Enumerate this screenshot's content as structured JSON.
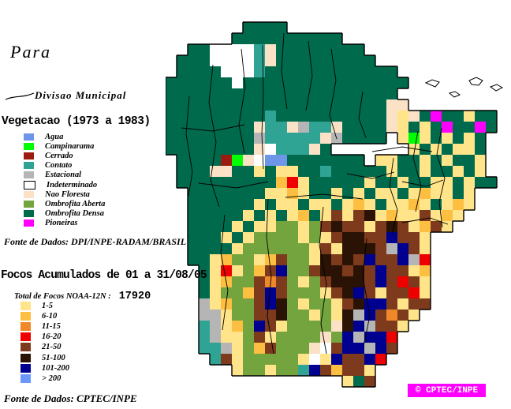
{
  "title": "Para",
  "divisao": {
    "label": "Divisao Municipal"
  },
  "vegetation": {
    "title": "Vegetacao (1973 a 1983)",
    "source": "Fonte de Dados: DPI/INPE-RADAM/BRASIL",
    "items": [
      {
        "label": "Agua",
        "color": "#6E96E8",
        "outline": false
      },
      {
        "label": "Campinarama",
        "color": "#00FF00",
        "outline": false
      },
      {
        "label": "Cerrado",
        "color": "#9B1B10",
        "outline": false
      },
      {
        "label": "Contato",
        "color": "#2FA394",
        "outline": false
      },
      {
        "label": "Estacional",
        "color": "#B5B5B5",
        "outline": false
      },
      {
        "label": "Indeterminado",
        "color": "#FFFFFF",
        "outline": true
      },
      {
        "label": "Nao Floresta",
        "color": "#FBE2C6",
        "outline": false
      },
      {
        "label": "Ombrofita Aberta",
        "color": "#74A43D",
        "outline": false
      },
      {
        "label": "Ombrofita Densa",
        "color": "#006B4C",
        "outline": false
      },
      {
        "label": "Pioneiras",
        "color": "#FF00FF",
        "outline": false
      }
    ]
  },
  "focos": {
    "title": "Focos Acumulados de 01 a 31/08/05",
    "total_label": "Total de Focos NOAA-12N :",
    "total_value": "17920",
    "source": "Fonte de Dados: CPTEC/INPE",
    "items": [
      {
        "label": "1-5",
        "color": "#FFE48A"
      },
      {
        "label": "6-10",
        "color": "#FDBF42"
      },
      {
        "label": "11-15",
        "color": "#EF8829"
      },
      {
        "label": "16-20",
        "color": "#EE0000"
      },
      {
        "label": "21-50",
        "color": "#7D3A1C"
      },
      {
        "label": "51-100",
        "color": "#2A1304"
      },
      {
        "label": "101-200",
        "color": "#000090"
      },
      {
        "label": "> 200",
        "color": "#6B97FA"
      }
    ]
  },
  "badge": {
    "text": "© CPTEC/INPE",
    "bg": "#FF00FF"
  },
  "map": {
    "cell_size": 14,
    "palette": {
      "D": "#006B4C",
      "A": "#74A43D",
      "C": "#2FA394",
      "E": "#B5B5B5",
      "N": "#FBE2C6",
      "W": "#FFFFFF",
      "G": "#00FF00",
      "Q": "#6E96E8",
      "P": "#FF00FF",
      "R": "#9B1B10",
      "y": "#FFE48A",
      "o": "#FDBF42",
      "x": "#EF8829",
      "r": "#EE0000",
      "b": "#7D3A1C",
      "k": "#2A1304",
      "n": "#000090",
      "L": "#6B97FA"
    },
    "rows": [
      "...............................",
      "...............................",
      ".......DDDD....................",
      "......DDDDDDDDDD...............",
      "..DDWWWWCNDDDDDDDD.............",
      ".DDDWWWWCNDDDDDDDDD............",
      ".DDDDWWWCDDDDDDDDDDDD..........",
      "DDDDDDWDDDDDDDDDDDDDDD.........",
      "DDDDDDDDDDDDDDDDDDDDD..........",
      "DDDDDDDDDDDDDDDDDDDDNN.........",
      "DDDDDDDDDCDDDDDDDDDDNyNDPDDyDD.",
      "DDDDDDDDNCCNECCNDDDDNyDyDPDDPD.",
      "DDDDDDDDECCCCCNEDDDD.yGyDyDyD..",
      "DDDDDDDDNWCCCND.......yDyDyyD..",
      ".DDDDRGNWQQDDDDDDD.yyDDyDyDDy..",
      ".DDDNNDDyDyyDDCDDDDDyDDyDDyDy..",
      ".DDDDDDDDDoryDDDDDyDDyDDyyDyDD.",
      "..DDDDDDDyyoyDDyDyDyyDyoyyDy...",
      "..DDDDDDyDyyDyyDyoyDyyoyDyoy...",
      "..DDDDDyDyDyoDybybkyoyybyoy....",
      "..DDDDyDyyAAyAbkbbybkbyoby.....",
      "..DDDyDyAAAAyAybkkbbnbby.......",
      "..DDDDyAAAAAAybykkkbEnby.......",
      "..DDyoAAyobAAykbkbnbbnEr.......",
      "...DyryAobnAAbkkbkbnbbyo.......",
      "...DyoAAbxbAyAbkkkbnbrby.......",
      "...DyAAobnbAAAybknbybbry.......",
      "...EyoAAbnkAyAAybknnbybb.......",
      "...EEyAAbbkAAyAykEnbxby........",
      "...CEyoAnbyAAAANknEbby.........",
      "...CEyyAbyAAAANAnEnnr..........",
      "...CCEyAobAAANWbnnEnb..........",
      "....CbyAAAAAyWynbbnr...........",
      "......yAAyAACnbobby............",
      "................yDb............"
    ],
    "boundary_paths": [
      "M123,57 L124,120 L122,170 L124,214",
      "M150,42 L147,90 L154,138",
      "M96,62 L101,110 L93,158 L100,194",
      "M60,82 L55,130 L64,180 L57,228 L68,262",
      "M30,122 L26,170 L34,218 L29,248",
      "M181,52 L186,96 L178,140",
      "M210,62 L216,102 L208,146 L217,176",
      "M250,116 L245,150 L254,174",
      "M289,200 L284,236 L294,266 L287,298",
      "M320,166 L314,200 L324,236 L317,268",
      "M350,162 L344,196 L354,226 L347,256 L351,288",
      "M130,252 L128,300 L134,350 L129,400 L137,448",
      "M200,262 L195,310 L204,360 L197,410 L204,448",
      "M255,302 L250,350 L259,400 L251,438",
      "M75,272 L70,320 L79,368 L72,418",
      "M20,162 L60,166 L100,158",
      "M42,232 L90,238 L130,230",
      "M152,250 L200,246 L250,252",
      "M262,192 L300,186 L338,192",
      "M300,282 L335,276 L358,284",
      "M230,220 L262,226 L290,218",
      "M300,230 L330,236 L352,228"
    ],
    "island_paths": [
      "M330,105 l8,-4 l9,3 l-5,6 z",
      "M360,118 l7,-2 l6,4 l-7,3 z",
      "M385,102 l9,-4 l8,4 l-5,6 l-9,-1 z",
      "M412,110 l8,-3 l7,4 l-8,4 z"
    ]
  }
}
